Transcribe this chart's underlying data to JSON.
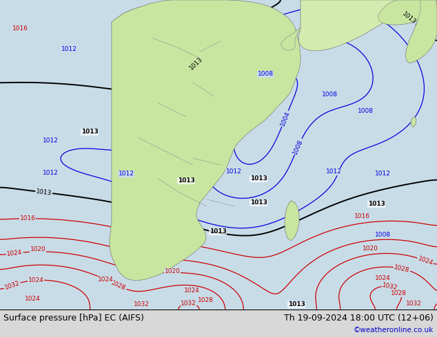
{
  "title_left": "Surface pressure [hPa] EC (AIFS)",
  "title_right": "Th 19-09-2024 18:00 UTC (12+06)",
  "credit": "©weatheronline.co.uk",
  "ocean_color": "#c8dce8",
  "land_color": "#c8e6a0",
  "land_color2": "#d4ebb0",
  "border_color": "#909090",
  "figsize": [
    6.34,
    4.9
  ],
  "dpi": 100,
  "bottom_bar_color": "#d8d8d8",
  "title_fontsize": 9.0,
  "credit_fontsize": 7.5,
  "credit_color": "#0000cc"
}
